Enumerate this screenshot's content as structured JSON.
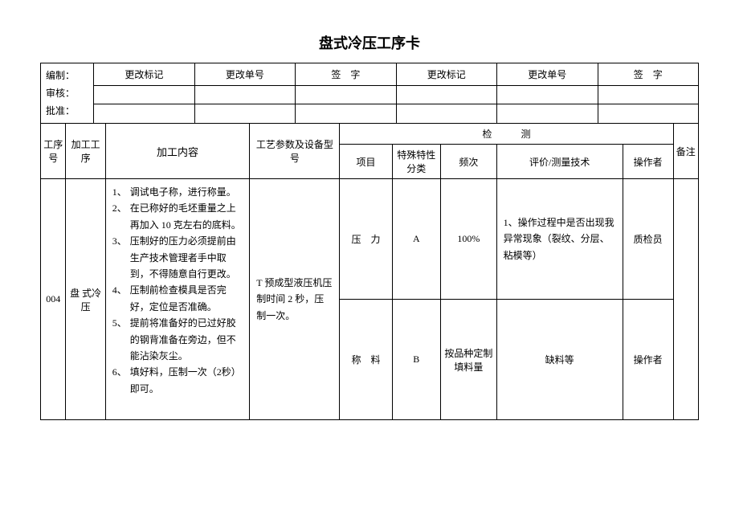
{
  "title": "盘式冷压工序卡",
  "meta": {
    "labels": {
      "compile": "编制：",
      "review": "审核：",
      "approve": "批准："
    },
    "cols": {
      "change_mark_1": "更改标记",
      "change_no_1": "更改单号",
      "sign_1": "签　字",
      "change_mark_2": "更改标记",
      "change_no_2": "更改单号",
      "sign_2": "签　字"
    }
  },
  "headers": {
    "seq_no": "工序号",
    "process": "加工工序",
    "content": "加工内容",
    "params": "工艺参数及设备型号",
    "inspection": "检　　　测",
    "item": "项目",
    "special": "特殊特性分类",
    "freq": "频次",
    "eval": "评价/测量技术",
    "operator": "操作者",
    "remarks": "备注"
  },
  "row": {
    "seq_no": "004",
    "process": "盘 式冷 压",
    "content_items": [
      {
        "n": "1、",
        "t": "调试电子称，进行称量。"
      },
      {
        "n": "2、",
        "t": "在已称好的毛坯重量之上再加入 10 克左右的底料。"
      },
      {
        "n": "3、",
        "t": "压制好的压力必须提前由生产技术管理者手中取到，不得随意自行更改。"
      },
      {
        "n": "4、",
        "t": "压制前检查模具是否完好，定位是否准确。"
      },
      {
        "n": "5、",
        "t": "提前将准备好的已过好胶的钢背准备在旁边，但不能沾染灰尘。"
      },
      {
        "n": "6、",
        "t": "填好料，压制一次（2秒）即可。"
      }
    ],
    "params": "T 预成型液压机压制时间 2 秒，压制一次。",
    "checks": [
      {
        "item": "压　力",
        "special": "A",
        "freq": "100%",
        "eval": "1、操作过程中是否出现我异常现象（裂纹、分层、粘模等）",
        "operator": "质检员"
      },
      {
        "item": "称　料",
        "special": "B",
        "freq": "按品种定制填料量",
        "eval": "缺料等",
        "operator": "操作者"
      }
    ]
  },
  "style": {
    "col_widths": {
      "seq_no": "28px",
      "process": "44px",
      "content": "160px",
      "params": "100px",
      "item": "58px",
      "special": "54px",
      "freq": "62px",
      "eval": "140px",
      "operator": "56px",
      "remarks": "28px"
    }
  }
}
